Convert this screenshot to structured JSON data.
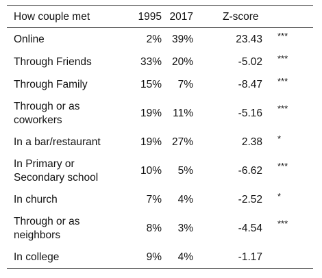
{
  "table": {
    "headers": {
      "label": "How couple met",
      "y1995": "1995",
      "y2017": "2017",
      "z": "Z-score"
    },
    "rows": [
      {
        "label": "Online",
        "v1995": "2%",
        "v2017": "39%",
        "z": "23.43",
        "sig": "***"
      },
      {
        "label": "Through Friends",
        "v1995": "33%",
        "v2017": "20%",
        "z": "-5.02",
        "sig": "***"
      },
      {
        "label": "Through Family",
        "v1995": "15%",
        "v2017": "7%",
        "z": "-8.47",
        "sig": "***"
      },
      {
        "label": "Through or as coworkers",
        "v1995": "19%",
        "v2017": "11%",
        "z": "-5.16",
        "sig": "***"
      },
      {
        "label": "In a bar/restaurant",
        "v1995": "19%",
        "v2017": "27%",
        "z": "2.38",
        "sig": "*"
      },
      {
        "label": "In Primary or Secondary school",
        "v1995": "10%",
        "v2017": "5%",
        "z": "-6.62",
        "sig": "***"
      },
      {
        "label": "In church",
        "v1995": "7%",
        "v2017": "4%",
        "z": "-2.52",
        "sig": "*"
      },
      {
        "label": "Through or as neighbors",
        "v1995": "8%",
        "v2017": "3%",
        "z": "-4.54",
        "sig": "***"
      },
      {
        "label": "In college",
        "v1995": "9%",
        "v2017": "4%",
        "z": "-1.17",
        "sig": ""
      }
    ]
  }
}
